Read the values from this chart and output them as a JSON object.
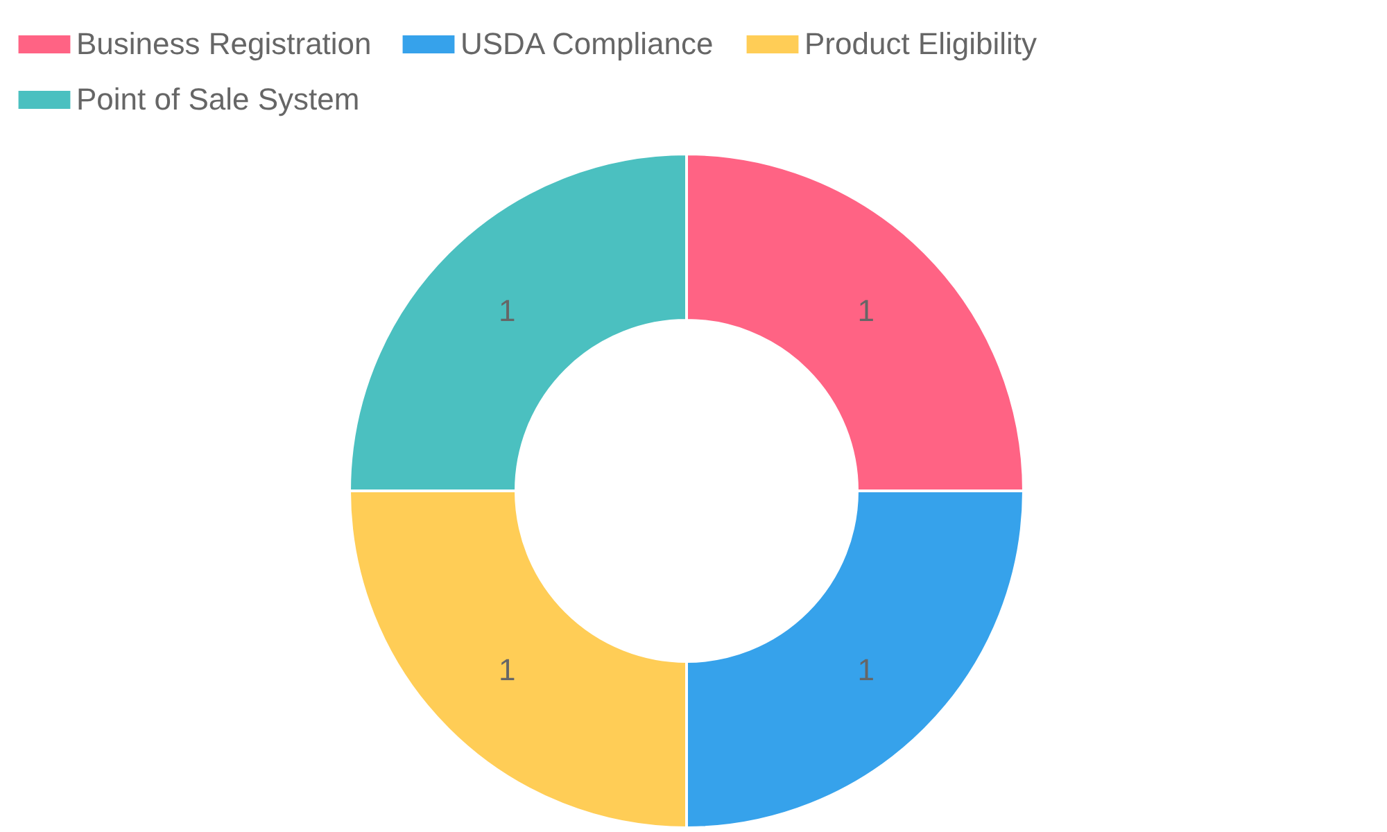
{
  "chart_data": {
    "type": "donut",
    "categories": [
      "Business Registration",
      "USDA Compliance",
      "Product Eligibility",
      "Point of Sale System"
    ],
    "values": [
      1,
      1,
      1,
      1
    ],
    "colors": [
      "#ff6384",
      "#36a2eb",
      "#ffcd56",
      "#4bc0c0"
    ],
    "data_labels": true,
    "legend": "top"
  }
}
